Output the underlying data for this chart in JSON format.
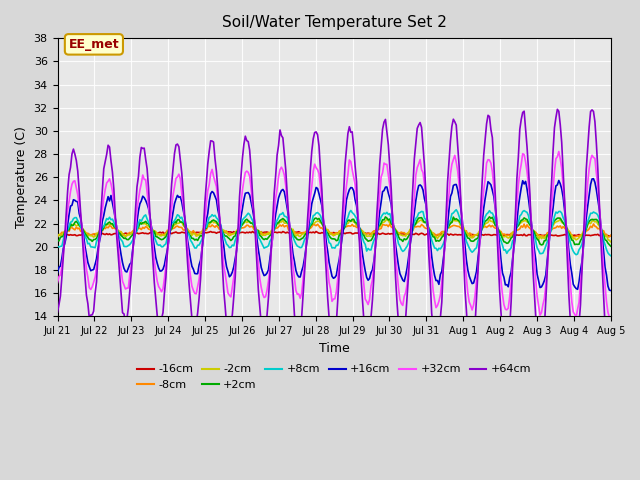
{
  "title": "Soil/Water Temperature Set 2",
  "xlabel": "Time",
  "ylabel": "Temperature (C)",
  "ylim": [
    14,
    38
  ],
  "yticks": [
    14,
    16,
    18,
    20,
    22,
    24,
    26,
    28,
    30,
    32,
    34,
    36,
    38
  ],
  "annotation_text": "EE_met",
  "annotation_bg": "#ffffcc",
  "annotation_border": "#cc9900",
  "annotation_text_color": "#990000",
  "fig_bg": "#d8d8d8",
  "ax_bg": "#e8e8e8",
  "series_colors": {
    "-16cm": "#cc0000",
    "-8cm": "#ff8800",
    "-2cm": "#cccc00",
    "+2cm": "#00aa00",
    "+8cm": "#00cccc",
    "+16cm": "#0000cc",
    "+32cm": "#ff44ff",
    "+64cm": "#8800cc"
  },
  "days": [
    "Jul 21",
    "Jul 22",
    "Jul 23",
    "Jul 24",
    "Jul 25",
    "Jul 26",
    "Jul 27",
    "Jul 28",
    "Jul 29",
    "Jul 30",
    "Jul 31",
    "Aug 1",
    "Aug 2",
    "Aug 3",
    "Aug 4",
    "Aug 5"
  ],
  "n_days": 16,
  "samples_per_day": 24
}
